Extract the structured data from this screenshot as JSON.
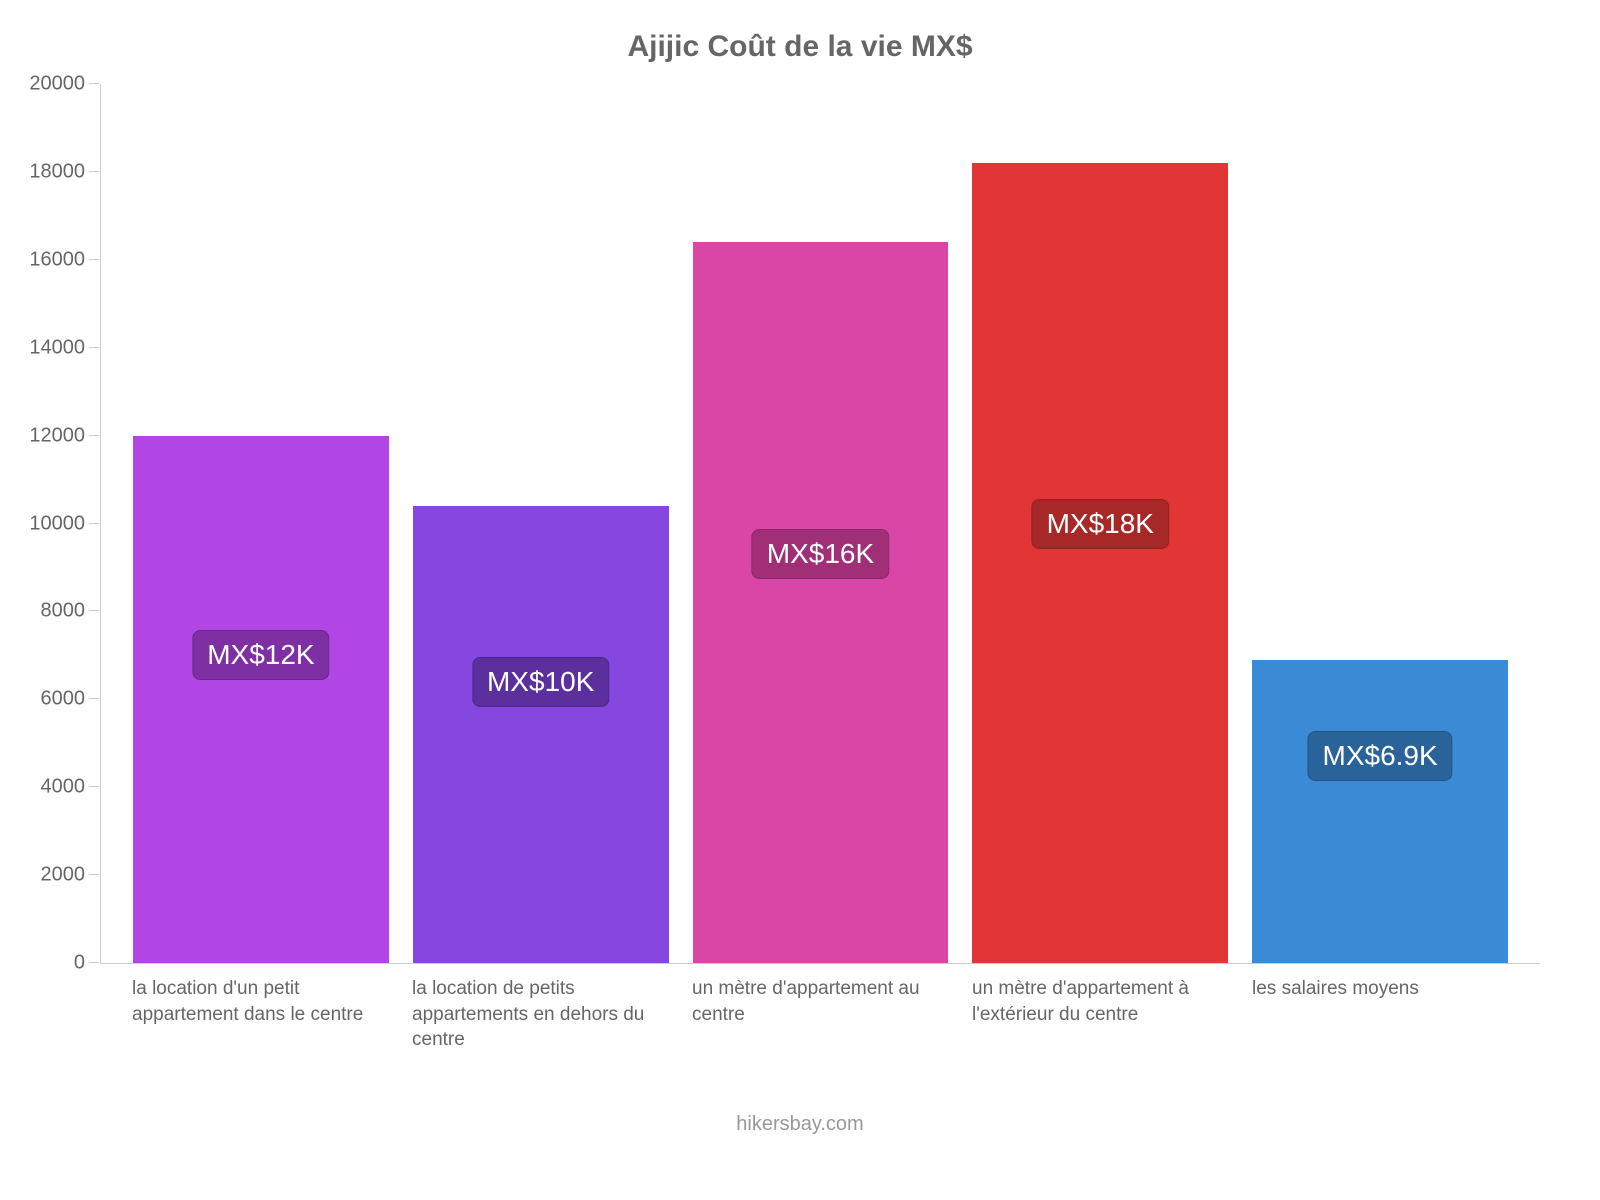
{
  "chart": {
    "type": "bar",
    "title": "Ajijic Coût de la vie MX$",
    "title_color": "#666666",
    "title_fontsize": 30,
    "background_color": "#ffffff",
    "axis_color": "#cccccc",
    "label_color": "#666666",
    "label_fontsize": 20,
    "xlabel_fontsize": 19,
    "ylim": [
      0,
      20000
    ],
    "ytick_step": 2000,
    "yticks": [
      {
        "value": 0,
        "label": "0"
      },
      {
        "value": 2000,
        "label": "2000"
      },
      {
        "value": 4000,
        "label": "4000"
      },
      {
        "value": 6000,
        "label": "6000"
      },
      {
        "value": 8000,
        "label": "8000"
      },
      {
        "value": 10000,
        "label": "10000"
      },
      {
        "value": 12000,
        "label": "12000"
      },
      {
        "value": 14000,
        "label": "14000"
      },
      {
        "value": 16000,
        "label": "16000"
      },
      {
        "value": 18000,
        "label": "18000"
      },
      {
        "value": 20000,
        "label": "20000"
      }
    ],
    "bars": [
      {
        "category": "la location d'un petit appartement dans le centre",
        "value": 12000,
        "display": "MX$12K",
        "color": "#b146e4",
        "badge_color": "#7d2fa3",
        "badge_y": 7000
      },
      {
        "category": "la location de petits appartements en dehors du centre",
        "value": 10400,
        "display": "MX$10K",
        "color": "#8646e0",
        "badge_color": "#5b2f9e",
        "badge_y": 6400
      },
      {
        "category": "un mètre d'appartement au centre",
        "value": 16400,
        "display": "MX$16K",
        "color": "#d946a5",
        "badge_color": "#a02f78",
        "badge_y": 9300
      },
      {
        "category": "un mètre d'appartement à l'extérieur du centre",
        "value": 18200,
        "display": "MX$18K",
        "color": "#e23636",
        "badge_color": "#a82727",
        "badge_y": 10000
      },
      {
        "category": "les salaires moyens",
        "value": 6900,
        "display": "MX$6.9K",
        "color": "#3a8ad6",
        "badge_color": "#2a6399",
        "badge_y": 4700
      }
    ],
    "badge_text_color": "#ffffff",
    "badge_fontsize": 28,
    "badge_border_radius": 8,
    "source": "hikersbay.com",
    "source_color": "#999999",
    "source_fontsize": 20
  }
}
